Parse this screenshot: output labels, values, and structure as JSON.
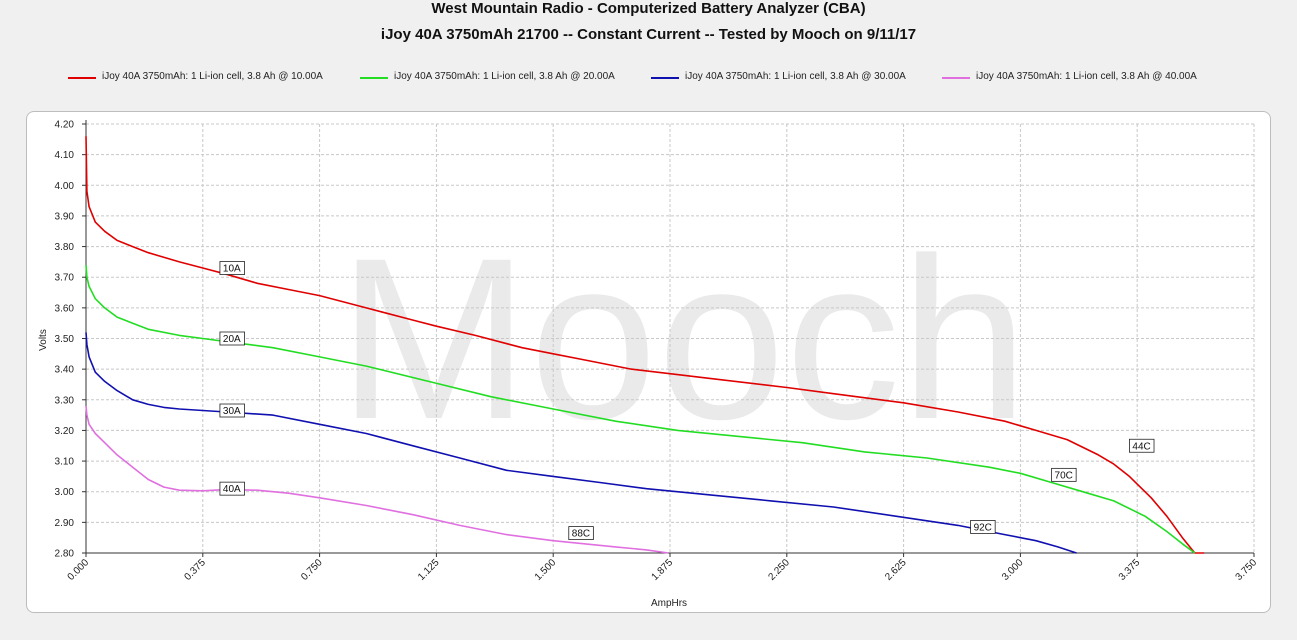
{
  "chart_data": {
    "type": "line",
    "title": "West Mountain Radio - Computerized Battery Analyzer (CBA)",
    "subtitle": "iJoy 40A 3750mAh 21700 -- Constant Current -- Tested by Mooch on 9/11/17",
    "xlabel": "AmpHrs",
    "ylabel": "Volts",
    "watermark": "Mooch",
    "xlim": [
      0,
      3.75
    ],
    "ylim": [
      2.8,
      4.2
    ],
    "xticks": [
      "0.000",
      "0.375",
      "0.750",
      "1.125",
      "1.500",
      "1.875",
      "2.250",
      "2.625",
      "3.000",
      "3.375",
      "3.750"
    ],
    "yticks": [
      "2.80",
      "2.90",
      "3.00",
      "3.10",
      "3.20",
      "3.30",
      "3.40",
      "3.50",
      "3.60",
      "3.70",
      "3.80",
      "3.90",
      "4.00",
      "4.10",
      "4.20"
    ],
    "grid": true,
    "legend_position": "top",
    "series": [
      {
        "name": "iJoy 40A 3750mAh: 1 Li-ion cell, 3.8 Ah @ 10.00A",
        "color": "#e00000",
        "x": [
          0,
          0.003,
          0.01,
          0.03,
          0.06,
          0.1,
          0.15,
          0.2,
          0.3,
          0.375,
          0.45,
          0.55,
          0.65,
          0.75,
          0.9,
          1.05,
          1.125,
          1.25,
          1.4,
          1.5,
          1.6,
          1.75,
          1.875,
          2.0,
          2.25,
          2.4,
          2.625,
          2.8,
          2.95,
          3.05,
          3.15,
          3.25,
          3.3,
          3.35,
          3.42,
          3.47,
          3.52,
          3.56,
          3.59
        ],
        "y": [
          4.16,
          3.98,
          3.93,
          3.88,
          3.85,
          3.82,
          3.8,
          3.78,
          3.75,
          3.73,
          3.71,
          3.68,
          3.66,
          3.64,
          3.6,
          3.56,
          3.54,
          3.51,
          3.47,
          3.45,
          3.43,
          3.4,
          3.385,
          3.37,
          3.34,
          3.32,
          3.29,
          3.26,
          3.23,
          3.2,
          3.17,
          3.12,
          3.09,
          3.05,
          2.98,
          2.92,
          2.85,
          2.8,
          2.8
        ]
      },
      {
        "name": "iJoy 40A 3750mAh: 1 Li-ion cell, 3.8 Ah @ 20.00A",
        "color": "#22dd22",
        "x": [
          0,
          0.003,
          0.01,
          0.03,
          0.06,
          0.1,
          0.15,
          0.2,
          0.3,
          0.375,
          0.45,
          0.6,
          0.75,
          0.9,
          1.1,
          1.3,
          1.5,
          1.7,
          1.9,
          2.1,
          2.3,
          2.5,
          2.7,
          2.9,
          3.0,
          3.1,
          3.2,
          3.3,
          3.4,
          3.47,
          3.52,
          3.56
        ],
        "y": [
          3.74,
          3.7,
          3.67,
          3.63,
          3.6,
          3.57,
          3.55,
          3.53,
          3.51,
          3.5,
          3.49,
          3.47,
          3.44,
          3.41,
          3.36,
          3.31,
          3.27,
          3.23,
          3.2,
          3.18,
          3.16,
          3.13,
          3.11,
          3.08,
          3.06,
          3.03,
          3.0,
          2.97,
          2.92,
          2.87,
          2.83,
          2.8
        ]
      },
      {
        "name": "iJoy 40A 3750mAh: 1 Li-ion cell, 3.8 Ah @ 30.00A",
        "color": "#1010b0",
        "x": [
          0,
          0.003,
          0.01,
          0.03,
          0.06,
          0.1,
          0.15,
          0.2,
          0.25,
          0.3,
          0.375,
          0.45,
          0.6,
          0.75,
          0.9,
          1.05,
          1.2,
          1.35,
          1.5,
          1.65,
          1.8,
          2.0,
          2.2,
          2.4,
          2.6,
          2.8,
          2.95,
          3.05,
          3.12,
          3.18
        ],
        "y": [
          3.52,
          3.48,
          3.44,
          3.39,
          3.36,
          3.33,
          3.3,
          3.285,
          3.275,
          3.27,
          3.265,
          3.26,
          3.25,
          3.22,
          3.19,
          3.15,
          3.11,
          3.07,
          3.05,
          3.03,
          3.01,
          2.99,
          2.97,
          2.95,
          2.92,
          2.89,
          2.86,
          2.84,
          2.82,
          2.8
        ]
      },
      {
        "name": "iJoy 40A 3750mAh: 1 Li-ion cell, 3.8 Ah @ 40.00A",
        "color": "#e070e0",
        "x": [
          0,
          0.003,
          0.01,
          0.03,
          0.06,
          0.1,
          0.15,
          0.2,
          0.25,
          0.3,
          0.375,
          0.45,
          0.55,
          0.65,
          0.75,
          0.9,
          1.05,
          1.2,
          1.35,
          1.5,
          1.6,
          1.7,
          1.8,
          1.87
        ],
        "y": [
          3.28,
          3.25,
          3.22,
          3.19,
          3.16,
          3.12,
          3.08,
          3.04,
          3.015,
          3.005,
          3.003,
          3.007,
          3.005,
          2.995,
          2.98,
          2.955,
          2.925,
          2.89,
          2.86,
          2.84,
          2.83,
          2.82,
          2.81,
          2.8
        ]
      }
    ],
    "annotations": [
      {
        "text": "10A",
        "x": 0.43,
        "y": 3.73,
        "series": 0
      },
      {
        "text": "20A",
        "x": 0.43,
        "y": 3.5,
        "series": 1
      },
      {
        "text": "30A",
        "x": 0.43,
        "y": 3.265,
        "series": 2
      },
      {
        "text": "40A",
        "x": 0.43,
        "y": 3.01,
        "series": 3
      },
      {
        "text": "88C",
        "x": 1.55,
        "y": 2.865,
        "series": 3
      },
      {
        "text": "92C",
        "x": 2.84,
        "y": 2.885,
        "series": 2
      },
      {
        "text": "70C",
        "x": 3.1,
        "y": 3.055,
        "series": 1
      },
      {
        "text": "44C",
        "x": 3.35,
        "y": 3.15,
        "series": 0
      }
    ]
  }
}
